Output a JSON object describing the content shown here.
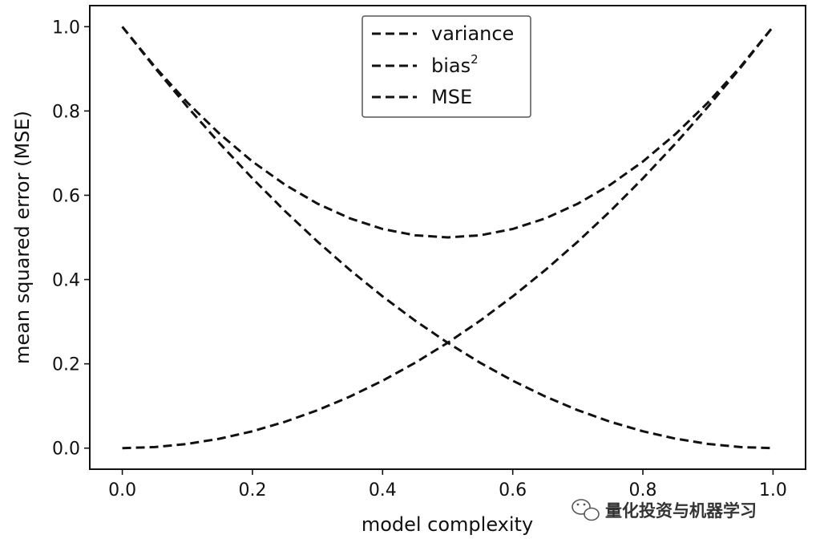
{
  "chart_data": {
    "type": "line",
    "title": "",
    "xlabel": "model complexity",
    "ylabel": "mean squared error (MSE)",
    "xlim": [
      -0.05,
      1.05
    ],
    "ylim": [
      -0.05,
      1.05
    ],
    "xticks": [
      "0.0",
      "0.2",
      "0.4",
      "0.6",
      "0.8",
      "1.0"
    ],
    "yticks": [
      "0.0",
      "0.2",
      "0.4",
      "0.6",
      "0.8",
      "1.0"
    ],
    "x": [
      0.0,
      0.05,
      0.1,
      0.15,
      0.2,
      0.25,
      0.3,
      0.35,
      0.4,
      0.45,
      0.5,
      0.55,
      0.6,
      0.65,
      0.7,
      0.75,
      0.8,
      0.85,
      0.9,
      0.95,
      1.0
    ],
    "series": [
      {
        "name": "variance",
        "values": [
          0.0,
          0.0025,
          0.01,
          0.0225,
          0.04,
          0.0625,
          0.09,
          0.1225,
          0.16,
          0.2025,
          0.25,
          0.3025,
          0.36,
          0.4225,
          0.49,
          0.5625,
          0.64,
          0.7225,
          0.81,
          0.9025,
          1.0
        ]
      },
      {
        "name": "bias",
        "name_superscript": "2",
        "values": [
          1.0,
          0.9025,
          0.81,
          0.7225,
          0.64,
          0.5625,
          0.49,
          0.4225,
          0.36,
          0.3025,
          0.25,
          0.2025,
          0.16,
          0.1225,
          0.09,
          0.0625,
          0.04,
          0.0225,
          0.01,
          0.0025,
          0.0
        ]
      },
      {
        "name": "MSE",
        "values": [
          1.0,
          0.905,
          0.82,
          0.745,
          0.68,
          0.625,
          0.58,
          0.545,
          0.52,
          0.505,
          0.5,
          0.505,
          0.52,
          0.545,
          0.58,
          0.625,
          0.68,
          0.745,
          0.82,
          0.905,
          1.0
        ]
      }
    ],
    "line_style": "dashed",
    "line_color": "#111111",
    "grid": false,
    "legend_position": "top-center"
  },
  "watermark": {
    "text": "量化投资与机器学习",
    "icon": "wechat-icon"
  }
}
